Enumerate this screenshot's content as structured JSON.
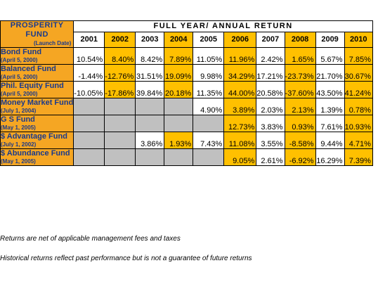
{
  "header": {
    "fund_line1": "PROSPERITY",
    "fund_line2": "FUND",
    "fund_line3": "(Launch Date)",
    "banner": "FULL YEAR/ ANNUAL RETURN"
  },
  "years": [
    "2001",
    "2002",
    "2003",
    "2004",
    "2005",
    "2006",
    "2007",
    "2008",
    "2009",
    "2010"
  ],
  "year_colors": [
    "white",
    "gold",
    "white",
    "gold",
    "white",
    "gold",
    "white",
    "gold",
    "white",
    "gold"
  ],
  "funds": [
    {
      "name": "Bond Fund",
      "date": "(April 5, 2000)",
      "values": [
        "10.54%",
        "8.40%",
        "8.42%",
        "7.89%",
        "11.05%",
        "11.96%",
        "2.42%",
        "1.65%",
        "5.67%",
        "7.85%"
      ]
    },
    {
      "name": "Balanced Fund",
      "date": "(April 5, 2000)",
      "values": [
        "-1.44%",
        "-12.76%",
        "31.51%",
        "19.09%",
        "9.98%",
        "34.29%",
        "17.21%",
        "-23.73%",
        "21.70%",
        "30.67%"
      ]
    },
    {
      "name": "Phil. Equity Fund",
      "date": "(April 5, 2000)",
      "values": [
        "-10.05%",
        "-17.86%",
        "39.84%",
        "20.18%",
        "11.35%",
        "44.00%",
        "20.58%",
        "-37.60%",
        "43.50%",
        "41.24%"
      ]
    },
    {
      "name": "Money Market Fund",
      "date": "(July 1, 2004)",
      "values": [
        "",
        "",
        "",
        "",
        "4.90%",
        "3.89%",
        "2.03%",
        "2.13%",
        "1.39%",
        "0.78%"
      ]
    },
    {
      "name": "G S Fund",
      "date": "(May 1, 2005)",
      "values": [
        "",
        "",
        "",
        "",
        "",
        "12.73%",
        "3.83%",
        "0.93%",
        "7.61%",
        "10.93%"
      ]
    },
    {
      "name": "$ Advantage Fund",
      "date": "(July 1, 2002)",
      "values": [
        "",
        "",
        "3.86%",
        "1.93%",
        "7.43%",
        "11.08%",
        "3.55%",
        "-8.58%",
        "9.44%",
        "4.71%"
      ]
    },
    {
      "name": "$ Abundance Fund",
      "date": "(May 1, 2005)",
      "values": [
        "",
        "",
        "",
        "",
        "",
        "9.05%",
        "2.61%",
        "-6.92%",
        "16.29%",
        "7.39%"
      ]
    }
  ],
  "notes": {
    "fees": "Returns are net of applicable management fees and taxes",
    "past": "Historical returns reflect past performance but is not a guarantee of future returns"
  },
  "colors": {
    "orange": "#f5a623",
    "gold": "#ffc000",
    "gray": "#c0c0c0",
    "fund_text": "#1a3a8c"
  }
}
